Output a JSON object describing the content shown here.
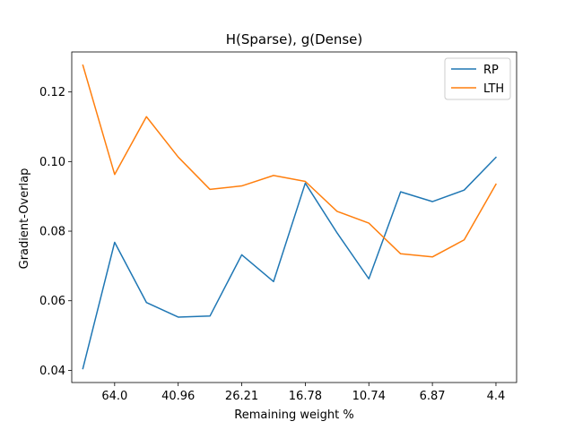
{
  "chart_data": {
    "type": "line",
    "title": "H(Sparse), g(Dense)",
    "xlabel": "Remaining weight %",
    "ylabel": "Gradient-Overlap",
    "x": [
      1,
      2,
      3,
      4,
      5,
      6,
      7,
      8,
      9,
      10,
      11,
      12,
      13,
      14
    ],
    "xticks": [
      {
        "pos": 2,
        "label": "64.0"
      },
      {
        "pos": 4,
        "label": "40.96"
      },
      {
        "pos": 6,
        "label": "26.21"
      },
      {
        "pos": 8,
        "label": "16.78"
      },
      {
        "pos": 10,
        "label": "10.74"
      },
      {
        "pos": 12,
        "label": "6.87"
      },
      {
        "pos": 14,
        "label": "4.4"
      }
    ],
    "yticks": [
      "0.04",
      "0.06",
      "0.08",
      "0.10",
      "0.12"
    ],
    "xlim": [
      0.65,
      14.65
    ],
    "ylim": [
      0.0365,
      0.1315
    ],
    "grid": false,
    "legend_position": "top-right",
    "colors": {
      "RP": "#1f77b4",
      "LTH": "#ff7f0e"
    },
    "series": [
      {
        "name": "RP",
        "values": [
          0.0405,
          0.0768,
          0.0595,
          0.0553,
          0.0556,
          0.0732,
          0.0655,
          0.0938,
          0.0795,
          0.0663,
          0.0913,
          0.0885,
          0.0918,
          0.1012
        ]
      },
      {
        "name": "LTH",
        "values": [
          0.1277,
          0.0963,
          0.1129,
          0.1013,
          0.092,
          0.093,
          0.096,
          0.0943,
          0.0857,
          0.0823,
          0.0735,
          0.0726,
          0.0775,
          0.0935
        ]
      }
    ]
  }
}
